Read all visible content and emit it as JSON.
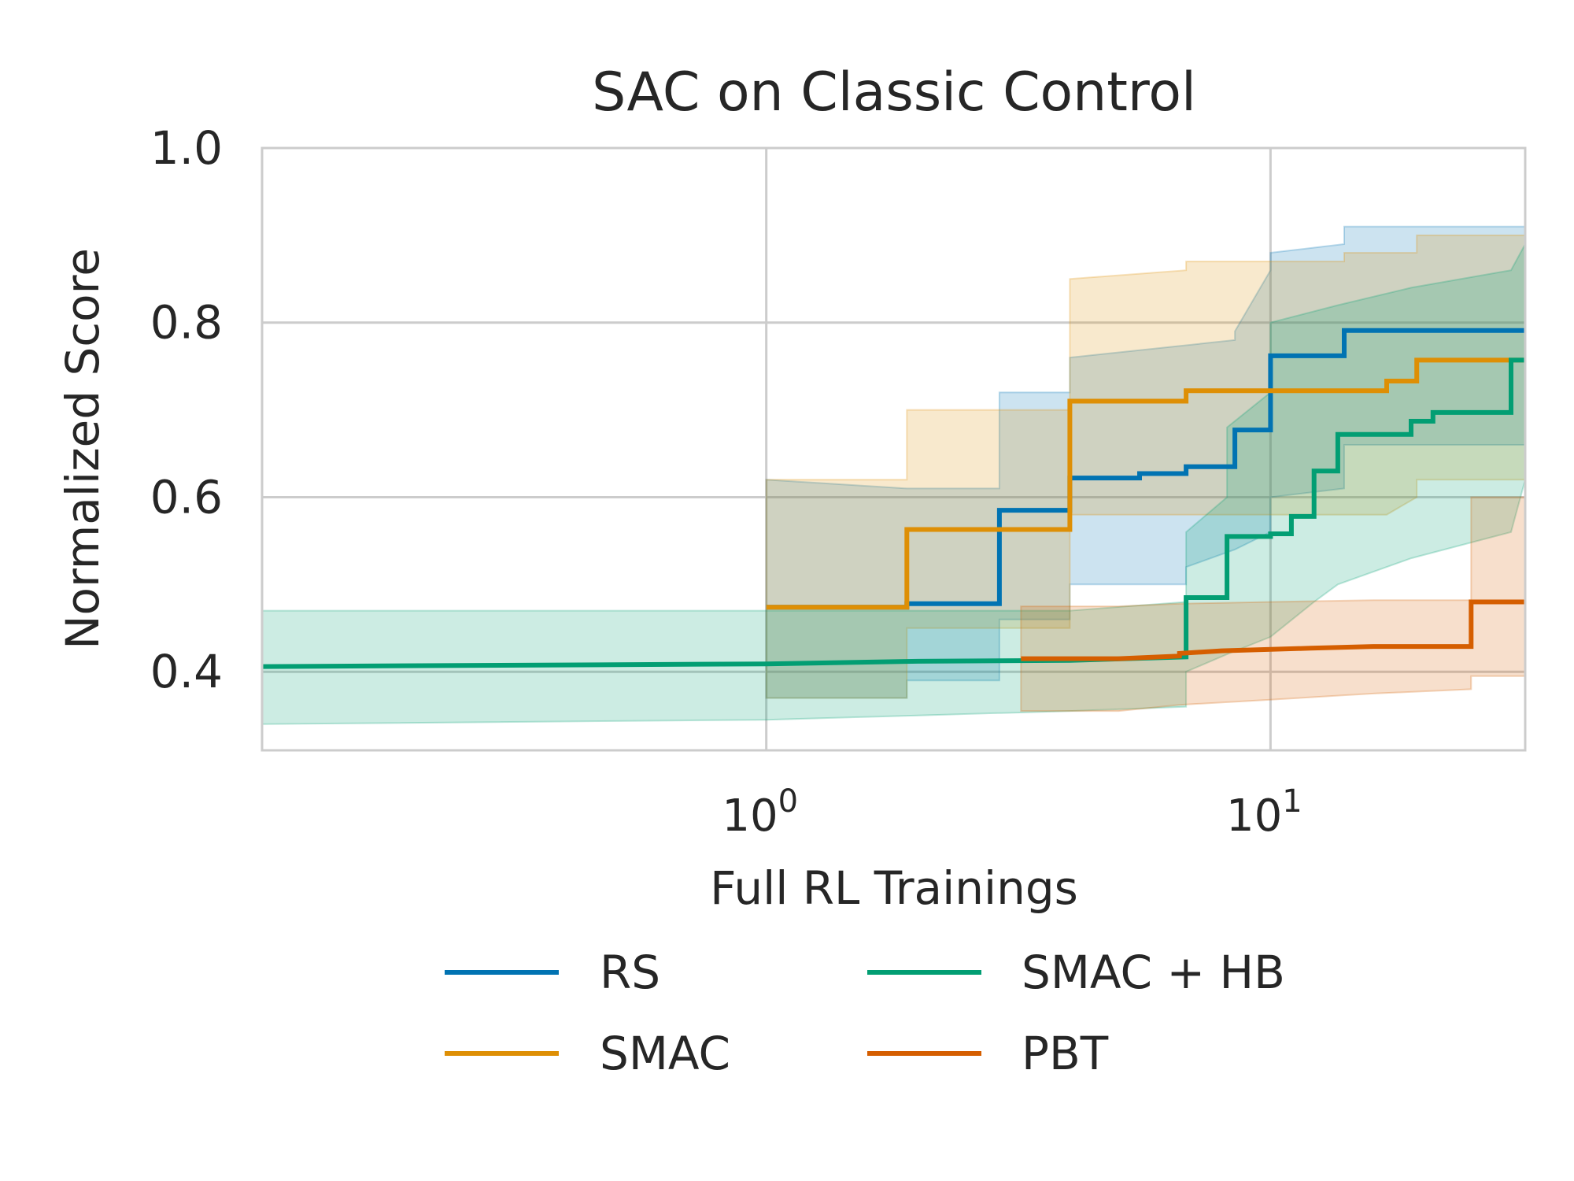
{
  "chart_data": {
    "type": "line",
    "title": "SAC on Classic Control",
    "xlabel": "Full RL Trainings",
    "ylabel": "Normalized Score",
    "x_scale": "log",
    "xlim": [
      0.1,
      32
    ],
    "ylim": [
      0.31,
      1.0
    ],
    "x_ticks": [
      {
        "value": 1,
        "base": "10",
        "exp": "0"
      },
      {
        "value": 10,
        "base": "10",
        "exp": "1"
      }
    ],
    "y_ticks": [
      {
        "value": 0.4,
        "label": "0.4"
      },
      {
        "value": 0.6,
        "label": "0.6"
      },
      {
        "value": 0.8,
        "label": "0.8"
      },
      {
        "value": 1.0,
        "label": "1.0"
      }
    ],
    "grid": true,
    "legend_position": "bottom-center",
    "series": [
      {
        "name": "RS",
        "color": "#0173b2",
        "points": [
          [
            1.0,
            0.474
          ],
          [
            1.9,
            0.474
          ],
          [
            1.9,
            0.478
          ],
          [
            2.9,
            0.478
          ],
          [
            2.9,
            0.585
          ],
          [
            4.0,
            0.585
          ],
          [
            4.0,
            0.622
          ],
          [
            5.5,
            0.622
          ],
          [
            5.5,
            0.627
          ],
          [
            6.8,
            0.627
          ],
          [
            6.8,
            0.635
          ],
          [
            8.5,
            0.635
          ],
          [
            8.5,
            0.677
          ],
          [
            10.0,
            0.677
          ],
          [
            10.0,
            0.762
          ],
          [
            14.0,
            0.762
          ],
          [
            14.0,
            0.791
          ],
          [
            32.0,
            0.791
          ]
        ],
        "upper": [
          [
            1.0,
            0.62
          ],
          [
            1.9,
            0.61
          ],
          [
            1.9,
            0.61
          ],
          [
            2.9,
            0.61
          ],
          [
            2.9,
            0.72
          ],
          [
            4.0,
            0.72
          ],
          [
            4.0,
            0.76
          ],
          [
            8.5,
            0.78
          ],
          [
            8.5,
            0.79
          ],
          [
            10.0,
            0.86
          ],
          [
            10.0,
            0.88
          ],
          [
            14.0,
            0.89
          ],
          [
            14.0,
            0.91
          ],
          [
            32.0,
            0.91
          ]
        ],
        "lower": [
          [
            1.0,
            0.37
          ],
          [
            1.9,
            0.37
          ],
          [
            1.9,
            0.39
          ],
          [
            2.9,
            0.39
          ],
          [
            2.9,
            0.46
          ],
          [
            4.0,
            0.46
          ],
          [
            4.0,
            0.5
          ],
          [
            6.8,
            0.5
          ],
          [
            6.8,
            0.52
          ],
          [
            8.5,
            0.54
          ],
          [
            10.0,
            0.56
          ],
          [
            10.0,
            0.6
          ],
          [
            14.0,
            0.61
          ],
          [
            14.0,
            0.66
          ],
          [
            32.0,
            0.66
          ]
        ]
      },
      {
        "name": "SMAC",
        "color": "#de8f05",
        "points": [
          [
            1.0,
            0.474
          ],
          [
            1.9,
            0.474
          ],
          [
            1.9,
            0.563
          ],
          [
            4.0,
            0.563
          ],
          [
            4.0,
            0.71
          ],
          [
            6.8,
            0.71
          ],
          [
            6.8,
            0.722
          ],
          [
            13.5,
            0.722
          ],
          [
            13.5,
            0.722
          ],
          [
            17.0,
            0.722
          ],
          [
            17.0,
            0.733
          ],
          [
            19.5,
            0.733
          ],
          [
            19.5,
            0.757
          ],
          [
            32.0,
            0.757
          ]
        ],
        "upper": [
          [
            1.0,
            0.62
          ],
          [
            1.9,
            0.62
          ],
          [
            1.9,
            0.7
          ],
          [
            4.0,
            0.7
          ],
          [
            4.0,
            0.85
          ],
          [
            6.8,
            0.86
          ],
          [
            6.8,
            0.87
          ],
          [
            14.0,
            0.87
          ],
          [
            14.0,
            0.88
          ],
          [
            19.5,
            0.88
          ],
          [
            19.5,
            0.9
          ],
          [
            32.0,
            0.9
          ]
        ],
        "lower": [
          [
            1.0,
            0.37
          ],
          [
            1.9,
            0.37
          ],
          [
            1.9,
            0.45
          ],
          [
            4.0,
            0.45
          ],
          [
            4.0,
            0.58
          ],
          [
            17.0,
            0.58
          ],
          [
            17.0,
            0.58
          ],
          [
            19.5,
            0.6
          ],
          [
            19.5,
            0.62
          ],
          [
            32.0,
            0.62
          ]
        ]
      },
      {
        "name": "SMAC + HB",
        "color": "#029e73",
        "points": [
          [
            0.1,
            0.406
          ],
          [
            1.0,
            0.409
          ],
          [
            2.0,
            0.412
          ],
          [
            4.0,
            0.413
          ],
          [
            6.8,
            0.417
          ],
          [
            6.8,
            0.485
          ],
          [
            8.2,
            0.485
          ],
          [
            8.2,
            0.555
          ],
          [
            10.0,
            0.555
          ],
          [
            10.0,
            0.558
          ],
          [
            11.0,
            0.558
          ],
          [
            11.0,
            0.578
          ],
          [
            12.2,
            0.578
          ],
          [
            12.2,
            0.63
          ],
          [
            13.6,
            0.63
          ],
          [
            13.6,
            0.672
          ],
          [
            19.0,
            0.672
          ],
          [
            19.0,
            0.687
          ],
          [
            21.0,
            0.687
          ],
          [
            21.0,
            0.697
          ],
          [
            30.0,
            0.697
          ],
          [
            30.0,
            0.757
          ],
          [
            32.0,
            0.757
          ]
        ],
        "upper": [
          [
            0.1,
            0.47
          ],
          [
            1.0,
            0.47
          ],
          [
            2.0,
            0.47
          ],
          [
            4.0,
            0.47
          ],
          [
            6.8,
            0.48
          ],
          [
            6.8,
            0.56
          ],
          [
            8.2,
            0.6
          ],
          [
            8.2,
            0.68
          ],
          [
            10.0,
            0.72
          ],
          [
            10.0,
            0.8
          ],
          [
            13.6,
            0.82
          ],
          [
            19.0,
            0.84
          ],
          [
            30.0,
            0.86
          ],
          [
            32.0,
            0.89
          ]
        ],
        "lower": [
          [
            0.1,
            0.34
          ],
          [
            1.0,
            0.345
          ],
          [
            2.0,
            0.35
          ],
          [
            4.0,
            0.355
          ],
          [
            6.8,
            0.36
          ],
          [
            6.8,
            0.4
          ],
          [
            8.2,
            0.42
          ],
          [
            10.0,
            0.44
          ],
          [
            12.2,
            0.48
          ],
          [
            13.6,
            0.5
          ],
          [
            19.0,
            0.53
          ],
          [
            30.0,
            0.56
          ],
          [
            32.0,
            0.62
          ]
        ]
      },
      {
        "name": "PBT",
        "color": "#d55e00",
        "points": [
          [
            3.2,
            0.415
          ],
          [
            5.0,
            0.415
          ],
          [
            6.6,
            0.418
          ],
          [
            6.6,
            0.421
          ],
          [
            8.0,
            0.424
          ],
          [
            12.0,
            0.427
          ],
          [
            16.0,
            0.429
          ],
          [
            25.0,
            0.429
          ],
          [
            25.0,
            0.48
          ],
          [
            32.0,
            0.48
          ]
        ],
        "upper": [
          [
            3.2,
            0.475
          ],
          [
            5.0,
            0.475
          ],
          [
            6.6,
            0.478
          ],
          [
            10.0,
            0.48
          ],
          [
            16.0,
            0.482
          ],
          [
            25.0,
            0.482
          ],
          [
            25.0,
            0.6
          ],
          [
            32.0,
            0.6
          ]
        ],
        "lower": [
          [
            3.2,
            0.355
          ],
          [
            5.0,
            0.355
          ],
          [
            6.6,
            0.362
          ],
          [
            10.0,
            0.368
          ],
          [
            16.0,
            0.375
          ],
          [
            25.0,
            0.38
          ],
          [
            25.0,
            0.395
          ],
          [
            32.0,
            0.395
          ]
        ]
      }
    ]
  }
}
